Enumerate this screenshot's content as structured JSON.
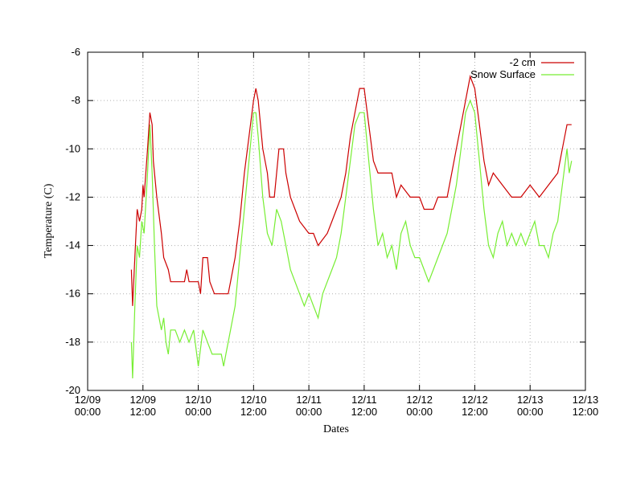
{
  "chart_data": {
    "type": "line",
    "title": "",
    "xlabel": "Dates",
    "ylabel": "Temperature (C)",
    "ylim": [
      -20,
      -6
    ],
    "xlim": [
      "12/09 00:00",
      "12/13 12:00"
    ],
    "grid": true,
    "legend_position": "top-right",
    "y_ticks": [
      "-20",
      "-18",
      "-16",
      "-14",
      "-12",
      "-10",
      "-8",
      "-6"
    ],
    "x_ticks": [
      {
        "date": "12/09",
        "time": "00:00"
      },
      {
        "date": "12/09",
        "time": "12:00"
      },
      {
        "date": "12/10",
        "time": "00:00"
      },
      {
        "date": "12/10",
        "time": "12:00"
      },
      {
        "date": "12/11",
        "time": "00:00"
      },
      {
        "date": "12/11",
        "time": "12:00"
      },
      {
        "date": "12/12",
        "time": "00:00"
      },
      {
        "date": "12/12",
        "time": "12:00"
      },
      {
        "date": "12/13",
        "time": "00:00"
      },
      {
        "date": "12/13",
        "time": "12:00"
      }
    ],
    "series": [
      {
        "name": "-2 cm",
        "color": "#cc0000",
        "points": [
          [
            "12/09 09:30",
            -15.0
          ],
          [
            "12/09 09:45",
            -16.5
          ],
          [
            "12/09 10:15",
            -14.5
          ],
          [
            "12/09 10:45",
            -12.5
          ],
          [
            "12/09 11:15",
            -13.0
          ],
          [
            "12/09 11:45",
            -12.5
          ],
          [
            "12/09 12:00",
            -11.5
          ],
          [
            "12/09 12:15",
            -12.0
          ],
          [
            "12/09 13:00",
            -10.0
          ],
          [
            "12/09 13:30",
            -8.5
          ],
          [
            "12/09 14:00",
            -9.0
          ],
          [
            "12/09 14:15",
            -10.5
          ],
          [
            "12/09 15:00",
            -12.0
          ],
          [
            "12/09 16:00",
            -13.5
          ],
          [
            "12/09 16:30",
            -14.5
          ],
          [
            "12/09 17:30",
            -15.0
          ],
          [
            "12/09 18:00",
            -15.5
          ],
          [
            "12/09 21:00",
            -15.5
          ],
          [
            "12/09 21:30",
            -15.0
          ],
          [
            "12/09 22:00",
            -15.5
          ],
          [
            "12/10 00:00",
            -15.5
          ],
          [
            "12/10 00:30",
            -16.0
          ],
          [
            "12/10 01:00",
            -14.5
          ],
          [
            "12/10 02:00",
            -14.5
          ],
          [
            "12/10 02:30",
            -15.5
          ],
          [
            "12/10 03:30",
            -16.0
          ],
          [
            "12/10 06:30",
            -16.0
          ],
          [
            "12/10 07:00",
            -15.5
          ],
          [
            "12/10 08:00",
            -14.5
          ],
          [
            "12/10 09:00",
            -13.0
          ],
          [
            "12/10 10:00",
            -11.0
          ],
          [
            "12/10 11:00",
            -9.5
          ],
          [
            "12/10 12:00",
            -8.0
          ],
          [
            "12/10 12:30",
            -7.5
          ],
          [
            "12/10 13:00",
            -8.0
          ],
          [
            "12/10 14:00",
            -10.0
          ],
          [
            "12/10 15:00",
            -11.0
          ],
          [
            "12/10 15:30",
            -12.0
          ],
          [
            "12/10 16:30",
            -12.0
          ],
          [
            "12/10 17:00",
            -11.0
          ],
          [
            "12/10 17:30",
            -10.0
          ],
          [
            "12/10 18:30",
            -10.0
          ],
          [
            "12/10 19:00",
            -11.0
          ],
          [
            "12/10 20:00",
            -12.0
          ],
          [
            "12/10 21:00",
            -12.5
          ],
          [
            "12/10 22:00",
            -13.0
          ],
          [
            "12/11 00:00",
            -13.5
          ],
          [
            "12/11 01:00",
            -13.5
          ],
          [
            "12/11 02:00",
            -14.0
          ],
          [
            "12/11 04:00",
            -13.5
          ],
          [
            "12/11 05:00",
            -13.0
          ],
          [
            "12/11 06:00",
            -12.5
          ],
          [
            "12/11 07:00",
            -12.0
          ],
          [
            "12/11 08:00",
            -11.0
          ],
          [
            "12/11 09:00",
            -9.5
          ],
          [
            "12/11 10:00",
            -8.5
          ],
          [
            "12/11 11:00",
            -7.5
          ],
          [
            "12/11 12:00",
            -7.5
          ],
          [
            "12/11 13:00",
            -9.0
          ],
          [
            "12/11 14:00",
            -10.5
          ],
          [
            "12/11 15:00",
            -11.0
          ],
          [
            "12/11 16:00",
            -11.0
          ],
          [
            "12/11 18:00",
            -11.0
          ],
          [
            "12/11 19:00",
            -12.0
          ],
          [
            "12/11 20:00",
            -11.5
          ],
          [
            "12/11 22:00",
            -12.0
          ],
          [
            "12/12 00:00",
            -12.0
          ],
          [
            "12/12 01:00",
            -12.5
          ],
          [
            "12/12 03:00",
            -12.5
          ],
          [
            "12/12 04:00",
            -12.0
          ],
          [
            "12/12 06:00",
            -12.0
          ],
          [
            "12/12 07:00",
            -11.0
          ],
          [
            "12/12 08:00",
            -10.0
          ],
          [
            "12/12 09:00",
            -9.0
          ],
          [
            "12/12 10:00",
            -8.0
          ],
          [
            "12/12 11:00",
            -7.0
          ],
          [
            "12/12 12:00",
            -7.5
          ],
          [
            "12/12 13:00",
            -9.0
          ],
          [
            "12/12 14:00",
            -10.5
          ],
          [
            "12/12 15:00",
            -11.5
          ],
          [
            "12/12 16:00",
            -11.0
          ],
          [
            "12/12 18:00",
            -11.5
          ],
          [
            "12/12 20:00",
            -12.0
          ],
          [
            "12/12 22:00",
            -12.0
          ],
          [
            "12/13 00:00",
            -11.5
          ],
          [
            "12/13 02:00",
            -12.0
          ],
          [
            "12/13 04:00",
            -11.5
          ],
          [
            "12/13 06:00",
            -11.0
          ],
          [
            "12/13 07:00",
            -10.0
          ],
          [
            "12/13 08:00",
            -9.0
          ],
          [
            "12/13 09:00",
            -9.0
          ]
        ]
      },
      {
        "name": "Snow Surface",
        "color": "#77ee33",
        "points": [
          [
            "12/09 09:30",
            -18.0
          ],
          [
            "12/09 09:45",
            -19.5
          ],
          [
            "12/09 10:15",
            -16.5
          ],
          [
            "12/09 10:45",
            -14.0
          ],
          [
            "12/09 11:15",
            -14.5
          ],
          [
            "12/09 11:45",
            -13.0
          ],
          [
            "12/09 12:15",
            -13.5
          ],
          [
            "12/09 13:00",
            -11.0
          ],
          [
            "12/09 13:30",
            -9.0
          ],
          [
            "12/09 14:00",
            -11.0
          ],
          [
            "12/09 14:30",
            -14.0
          ],
          [
            "12/09 15:00",
            -16.5
          ],
          [
            "12/09 16:00",
            -17.5
          ],
          [
            "12/09 16:30",
            -17.0
          ],
          [
            "12/09 17:00",
            -18.0
          ],
          [
            "12/09 17:30",
            -18.5
          ],
          [
            "12/09 18:00",
            -17.5
          ],
          [
            "12/09 19:00",
            -17.5
          ],
          [
            "12/09 20:00",
            -18.0
          ],
          [
            "12/09 21:00",
            -17.5
          ],
          [
            "12/09 22:00",
            -18.0
          ],
          [
            "12/09 23:00",
            -17.5
          ],
          [
            "12/10 00:00",
            -19.0
          ],
          [
            "12/10 01:00",
            -17.5
          ],
          [
            "12/10 02:00",
            -18.0
          ],
          [
            "12/10 03:00",
            -18.5
          ],
          [
            "12/10 05:00",
            -18.5
          ],
          [
            "12/10 05:30",
            -19.0
          ],
          [
            "12/10 06:00",
            -18.5
          ],
          [
            "12/10 07:00",
            -17.5
          ],
          [
            "12/10 08:00",
            -16.5
          ],
          [
            "12/10 09:00",
            -14.5
          ],
          [
            "12/10 10:00",
            -12.5
          ],
          [
            "12/10 11:00",
            -10.5
          ],
          [
            "12/10 12:00",
            -8.5
          ],
          [
            "12/10 12:30",
            -8.5
          ],
          [
            "12/10 13:00",
            -9.5
          ],
          [
            "12/10 14:00",
            -12.0
          ],
          [
            "12/10 15:00",
            -13.5
          ],
          [
            "12/10 16:00",
            -14.0
          ],
          [
            "12/10 17:00",
            -12.5
          ],
          [
            "12/10 18:00",
            -13.0
          ],
          [
            "12/10 19:00",
            -14.0
          ],
          [
            "12/10 20:00",
            -15.0
          ],
          [
            "12/10 21:00",
            -15.5
          ],
          [
            "12/10 22:00",
            -16.0
          ],
          [
            "12/10 23:00",
            -16.5
          ],
          [
            "12/11 00:00",
            -16.0
          ],
          [
            "12/11 01:00",
            -16.5
          ],
          [
            "12/11 02:00",
            -17.0
          ],
          [
            "12/11 03:00",
            -16.0
          ],
          [
            "12/11 04:00",
            -15.5
          ],
          [
            "12/11 05:00",
            -15.0
          ],
          [
            "12/11 06:00",
            -14.5
          ],
          [
            "12/11 07:00",
            -13.5
          ],
          [
            "12/11 08:00",
            -12.0
          ],
          [
            "12/11 09:00",
            -10.5
          ],
          [
            "12/11 10:00",
            -9.0
          ],
          [
            "12/11 11:00",
            -8.5
          ],
          [
            "12/11 12:00",
            -8.5
          ],
          [
            "12/11 13:00",
            -10.5
          ],
          [
            "12/11 14:00",
            -12.5
          ],
          [
            "12/11 15:00",
            -14.0
          ],
          [
            "12/11 16:00",
            -13.5
          ],
          [
            "12/11 17:00",
            -14.5
          ],
          [
            "12/11 18:00",
            -14.0
          ],
          [
            "12/11 19:00",
            -15.0
          ],
          [
            "12/11 20:00",
            -13.5
          ],
          [
            "12/11 21:00",
            -13.0
          ],
          [
            "12/11 22:00",
            -14.0
          ],
          [
            "12/11 23:00",
            -14.5
          ],
          [
            "12/12 00:00",
            -14.5
          ],
          [
            "12/12 01:00",
            -15.0
          ],
          [
            "12/12 02:00",
            -15.5
          ],
          [
            "12/12 03:00",
            -15.0
          ],
          [
            "12/12 04:00",
            -14.5
          ],
          [
            "12/12 05:00",
            -14.0
          ],
          [
            "12/12 06:00",
            -13.5
          ],
          [
            "12/12 07:00",
            -12.5
          ],
          [
            "12/12 08:00",
            -11.5
          ],
          [
            "12/12 09:00",
            -10.0
          ],
          [
            "12/12 10:00",
            -8.5
          ],
          [
            "12/12 11:00",
            -8.0
          ],
          [
            "12/12 12:00",
            -8.5
          ],
          [
            "12/12 13:00",
            -10.5
          ],
          [
            "12/12 14:00",
            -12.5
          ],
          [
            "12/12 15:00",
            -14.0
          ],
          [
            "12/12 16:00",
            -14.5
          ],
          [
            "12/12 17:00",
            -13.5
          ],
          [
            "12/12 18:00",
            -13.0
          ],
          [
            "12/12 19:00",
            -14.0
          ],
          [
            "12/12 20:00",
            -13.5
          ],
          [
            "12/12 21:00",
            -14.0
          ],
          [
            "12/12 22:00",
            -13.5
          ],
          [
            "12/12 23:00",
            -14.0
          ],
          [
            "12/13 00:00",
            -13.5
          ],
          [
            "12/13 01:00",
            -13.0
          ],
          [
            "12/13 02:00",
            -14.0
          ],
          [
            "12/13 03:00",
            -14.0
          ],
          [
            "12/13 04:00",
            -14.5
          ],
          [
            "12/13 05:00",
            -13.5
          ],
          [
            "12/13 06:00",
            -13.0
          ],
          [
            "12/13 07:00",
            -11.5
          ],
          [
            "12/13 08:00",
            -10.0
          ],
          [
            "12/13 08:30",
            -11.0
          ],
          [
            "12/13 09:00",
            -10.5
          ]
        ]
      }
    ]
  }
}
